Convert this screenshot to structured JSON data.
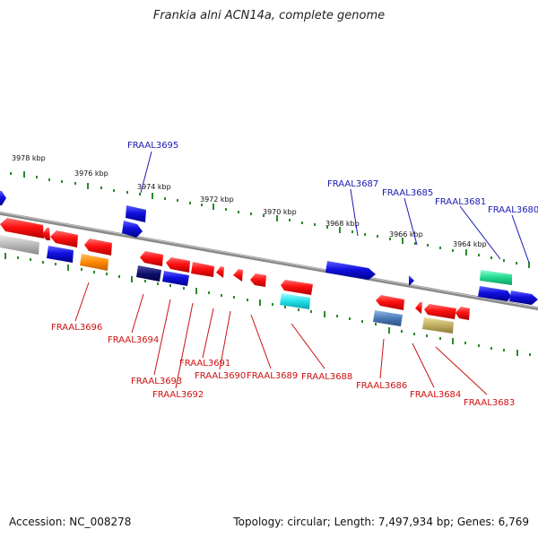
{
  "title": "Frankia alni ACN14a, complete genome",
  "accession": "Accession: NC_008278",
  "summary": "Topology: circular; Length: 7,497,934 bp; Genes: 6,769",
  "scale_labels": [
    "3978 kbp",
    "3976 kbp",
    "3974 kbp",
    "3972 kbp",
    "3970 kbp",
    "3968 kbp",
    "3966 kbp",
    "3964 kbp"
  ],
  "labels_forward": [
    "FRAAL3695",
    "FRAAL3687",
    "FRAAL3685",
    "FRAAL3681",
    "FRAAL3680"
  ],
  "labels_reverse": [
    "FRAAL3696",
    "FRAAL3694",
    "FRAAL3693",
    "FRAAL3692",
    "FRAAL3691",
    "FRAAL3690",
    "FRAAL3689",
    "FRAAL3688",
    "FRAAL3686",
    "FRAAL3684",
    "FRAAL3683"
  ],
  "colors": {
    "forward_label": "#1a1ab4",
    "reverse_label": "#cc1111",
    "backbone": "#8a8a8a",
    "tick": "#2a8a2a",
    "gene_forward": "#1010e0",
    "gene_reverse": "#ee1111"
  }
}
